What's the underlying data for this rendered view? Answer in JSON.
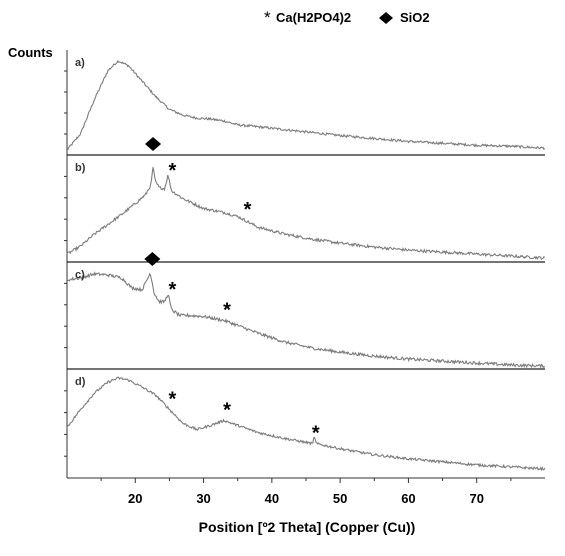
{
  "chart_data": {
    "type": "line",
    "title": "",
    "ylabel": "Counts",
    "xlabel": "Position [º2 Theta] (Copper (Cu))",
    "xlim": [
      10,
      80
    ],
    "xticks": [
      20,
      30,
      40,
      50,
      60,
      70
    ],
    "grid": false,
    "legend_position": "top",
    "legend": [
      {
        "symbol": "asterisk",
        "label": "Ca(H2PO4)2"
      },
      {
        "symbol": "diamond",
        "label": "SiO2"
      }
    ],
    "series": [
      {
        "name": "a)",
        "points": [
          [
            10,
            0.03
          ],
          [
            12,
            0.2
          ],
          [
            14,
            0.55
          ],
          [
            16,
            0.85
          ],
          [
            17.5,
            0.95
          ],
          [
            19,
            0.9
          ],
          [
            21,
            0.74
          ],
          [
            23,
            0.58
          ],
          [
            25,
            0.45
          ],
          [
            27,
            0.39
          ],
          [
            29,
            0.36
          ],
          [
            31,
            0.35
          ],
          [
            33,
            0.33
          ],
          [
            35,
            0.29
          ],
          [
            38,
            0.27
          ],
          [
            42,
            0.24
          ],
          [
            46,
            0.21
          ],
          [
            50,
            0.18
          ],
          [
            55,
            0.15
          ],
          [
            60,
            0.12
          ],
          [
            65,
            0.1
          ],
          [
            70,
            0.08
          ],
          [
            75,
            0.07
          ],
          [
            80,
            0.05
          ]
        ],
        "noise": 0.012,
        "markers": []
      },
      {
        "name": "b)",
        "points": [
          [
            10,
            0.06
          ],
          [
            12,
            0.14
          ],
          [
            14,
            0.26
          ],
          [
            16,
            0.36
          ],
          [
            18,
            0.46
          ],
          [
            20,
            0.57
          ],
          [
            21.5,
            0.66
          ],
          [
            22.3,
            0.76
          ],
          [
            22.6,
            0.94
          ],
          [
            22.9,
            0.8
          ],
          [
            23.5,
            0.73
          ],
          [
            24.3,
            0.72
          ],
          [
            24.8,
            0.86
          ],
          [
            25.3,
            0.7
          ],
          [
            27,
            0.62
          ],
          [
            30,
            0.52
          ],
          [
            33,
            0.48
          ],
          [
            35,
            0.44
          ],
          [
            38,
            0.33
          ],
          [
            42,
            0.26
          ],
          [
            46,
            0.21
          ],
          [
            50,
            0.17
          ],
          [
            55,
            0.13
          ],
          [
            60,
            0.1
          ],
          [
            65,
            0.08
          ],
          [
            70,
            0.06
          ],
          [
            75,
            0.04
          ],
          [
            80,
            0.02
          ]
        ],
        "noise": 0.014,
        "markers": [
          {
            "symbol": "diamond",
            "x": 22.6
          },
          {
            "symbol": "asterisk",
            "x": 25.0
          },
          {
            "symbol": "asterisk",
            "x": 36.0
          }
        ]
      },
      {
        "name": "c)",
        "points": [
          [
            10,
            0.88
          ],
          [
            12,
            0.9
          ],
          [
            14,
            0.94
          ],
          [
            16,
            0.93
          ],
          [
            18,
            0.9
          ],
          [
            19.5,
            0.8
          ],
          [
            21,
            0.78
          ],
          [
            22.2,
            0.95
          ],
          [
            22.8,
            0.74
          ],
          [
            23.5,
            0.66
          ],
          [
            24.3,
            0.66
          ],
          [
            24.8,
            0.74
          ],
          [
            25.3,
            0.58
          ],
          [
            26.5,
            0.52
          ],
          [
            28,
            0.52
          ],
          [
            30,
            0.51
          ],
          [
            33,
            0.47
          ],
          [
            35,
            0.42
          ],
          [
            38,
            0.34
          ],
          [
            42,
            0.25
          ],
          [
            46,
            0.19
          ],
          [
            50,
            0.15
          ],
          [
            55,
            0.11
          ],
          [
            60,
            0.08
          ],
          [
            65,
            0.06
          ],
          [
            70,
            0.04
          ],
          [
            75,
            0.02
          ],
          [
            80,
            0.01
          ]
        ],
        "noise": 0.015,
        "markers": [
          {
            "symbol": "diamond",
            "x": 22.5
          },
          {
            "symbol": "asterisk",
            "x": 25.0
          },
          {
            "symbol": "asterisk",
            "x": 33.0
          }
        ]
      },
      {
        "name": "d)",
        "points": [
          [
            10,
            0.48
          ],
          [
            12,
            0.66
          ],
          [
            14,
            0.82
          ],
          [
            16,
            0.93
          ],
          [
            17.5,
            0.97
          ],
          [
            19,
            0.95
          ],
          [
            21,
            0.88
          ],
          [
            23,
            0.8
          ],
          [
            25,
            0.66
          ],
          [
            27,
            0.52
          ],
          [
            29,
            0.46
          ],
          [
            31,
            0.5
          ],
          [
            33,
            0.55
          ],
          [
            35,
            0.5
          ],
          [
            38,
            0.43
          ],
          [
            42,
            0.37
          ],
          [
            46,
            0.32
          ],
          [
            46.2,
            0.4
          ],
          [
            46.5,
            0.32
          ],
          [
            50,
            0.27
          ],
          [
            55,
            0.21
          ],
          [
            60,
            0.17
          ],
          [
            65,
            0.14
          ],
          [
            70,
            0.11
          ],
          [
            75,
            0.09
          ],
          [
            80,
            0.07
          ]
        ],
        "noise": 0.012,
        "markers": [
          {
            "symbol": "asterisk",
            "x": 25.0
          },
          {
            "symbol": "asterisk",
            "x": 33.0
          },
          {
            "symbol": "asterisk",
            "x": 46.0
          }
        ]
      }
    ]
  },
  "colors": {
    "line": "#7c7c7c",
    "axis": "#333333",
    "separator": "#222222",
    "text": "#000000"
  }
}
